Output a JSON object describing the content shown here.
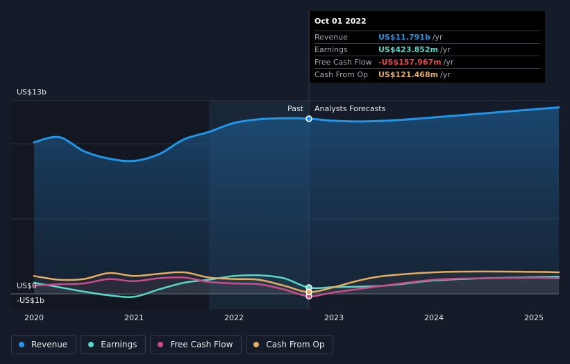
{
  "chart_data": {
    "type": "area",
    "x_labels": [
      "2020",
      "2021",
      "2022",
      "2023",
      "2024",
      "2025"
    ],
    "y_axis_labels": [
      "US$13b",
      "US$0",
      "-US$1b"
    ],
    "ylim": [
      -1,
      13
    ],
    "past_label": "Past",
    "forecast_label": "Analysts Forecasts",
    "series": [
      {
        "name": "Revenue",
        "color": "#2395e7",
        "points": [
          [
            2020.0,
            10.2
          ],
          [
            2020.25,
            10.55
          ],
          [
            2020.5,
            9.6
          ],
          [
            2020.75,
            9.1
          ],
          [
            2021.0,
            8.95
          ],
          [
            2021.25,
            9.4
          ],
          [
            2021.5,
            10.4
          ],
          [
            2021.75,
            10.9
          ],
          [
            2022.0,
            11.5
          ],
          [
            2022.25,
            11.75
          ],
          [
            2022.5,
            11.82
          ],
          [
            2022.75,
            11.79
          ],
          [
            2023.0,
            11.65
          ],
          [
            2023.25,
            11.6
          ],
          [
            2023.5,
            11.65
          ],
          [
            2023.75,
            11.75
          ],
          [
            2024.0,
            11.88
          ],
          [
            2024.5,
            12.15
          ],
          [
            2025.0,
            12.42
          ],
          [
            2025.25,
            12.55
          ]
        ]
      },
      {
        "name": "Earnings",
        "color": "#59d6c7",
        "points": [
          [
            2020.0,
            0.75
          ],
          [
            2020.25,
            0.45
          ],
          [
            2020.5,
            0.15
          ],
          [
            2020.75,
            -0.1
          ],
          [
            2021.0,
            -0.2
          ],
          [
            2021.25,
            0.3
          ],
          [
            2021.5,
            0.75
          ],
          [
            2021.75,
            0.95
          ],
          [
            2022.0,
            1.2
          ],
          [
            2022.25,
            1.25
          ],
          [
            2022.5,
            1.05
          ],
          [
            2022.75,
            0.42
          ],
          [
            2023.0,
            0.45
          ],
          [
            2023.5,
            0.55
          ],
          [
            2024.0,
            0.9
          ],
          [
            2024.5,
            1.05
          ],
          [
            2025.0,
            1.12
          ],
          [
            2025.25,
            1.15
          ]
        ]
      },
      {
        "name": "Free Cash Flow",
        "color": "#cc4c8b",
        "points": [
          [
            2020.0,
            0.55
          ],
          [
            2020.25,
            0.65
          ],
          [
            2020.5,
            0.7
          ],
          [
            2020.75,
            1.0
          ],
          [
            2021.0,
            0.85
          ],
          [
            2021.25,
            1.05
          ],
          [
            2021.5,
            1.1
          ],
          [
            2021.75,
            0.8
          ],
          [
            2022.0,
            0.7
          ],
          [
            2022.25,
            0.65
          ],
          [
            2022.5,
            0.3
          ],
          [
            2022.75,
            -0.16
          ],
          [
            2023.0,
            0.1
          ],
          [
            2023.5,
            0.55
          ],
          [
            2024.0,
            0.95
          ],
          [
            2024.5,
            1.05
          ],
          [
            2025.0,
            1.08
          ],
          [
            2025.25,
            1.05
          ]
        ]
      },
      {
        "name": "Cash From Op",
        "color": "#e4ad62",
        "points": [
          [
            2020.0,
            1.2
          ],
          [
            2020.25,
            0.95
          ],
          [
            2020.5,
            1.0
          ],
          [
            2020.75,
            1.4
          ],
          [
            2021.0,
            1.2
          ],
          [
            2021.25,
            1.35
          ],
          [
            2021.5,
            1.45
          ],
          [
            2021.75,
            1.1
          ],
          [
            2022.0,
            1.0
          ],
          [
            2022.25,
            0.95
          ],
          [
            2022.5,
            0.55
          ],
          [
            2022.75,
            0.12
          ],
          [
            2023.0,
            0.45
          ],
          [
            2023.25,
            0.9
          ],
          [
            2023.5,
            1.2
          ],
          [
            2024.0,
            1.45
          ],
          [
            2024.5,
            1.5
          ],
          [
            2025.0,
            1.48
          ],
          [
            2025.25,
            1.45
          ]
        ]
      }
    ],
    "tooltip": {
      "date": "Oct 01 2022",
      "x": 2022.75,
      "rows": [
        {
          "name": "Revenue",
          "value": "US$11.791b",
          "unit": "/yr",
          "color": "#2395e7",
          "y": 11.791
        },
        {
          "name": "Earnings",
          "value": "US$423.852m",
          "unit": "/yr",
          "color": "#59d6c7",
          "y": 0.424
        },
        {
          "name": "Free Cash Flow",
          "value": "-US$157.967m",
          "unit": "/yr",
          "color": "#e5484d",
          "y": -0.158
        },
        {
          "name": "Cash From Op",
          "value": "US$121.468m",
          "unit": "/yr",
          "color": "#e4ad62",
          "y": 0.121
        }
      ]
    }
  },
  "legend": [
    {
      "label": "Revenue",
      "color": "#2395e7"
    },
    {
      "label": "Earnings",
      "color": "#59d6c7"
    },
    {
      "label": "Free Cash Flow",
      "color": "#cc4c8b"
    },
    {
      "label": "Cash From Op",
      "color": "#e4ad62"
    }
  ]
}
